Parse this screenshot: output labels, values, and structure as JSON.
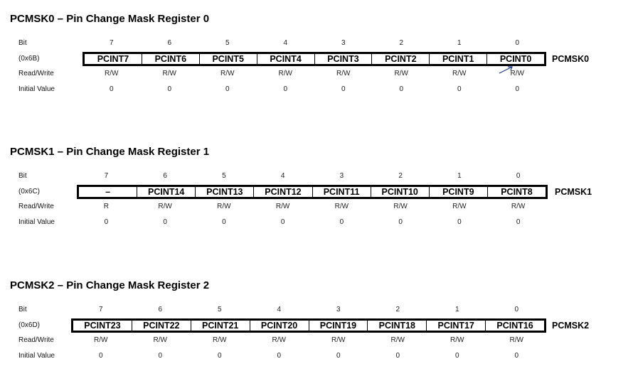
{
  "row_labels": {
    "bit": "Bit",
    "read_write": "Read/Write",
    "initial_value": "Initial Value"
  },
  "registers": [
    {
      "title": "PCMSK0 – Pin Change Mask Register 0",
      "address": "(0x6B)",
      "name": "PCMSK0",
      "bits": [
        "7",
        "6",
        "5",
        "4",
        "3",
        "2",
        "1",
        "0"
      ],
      "fields": [
        "PCINT7",
        "PCINT6",
        "PCINT5",
        "PCINT4",
        "PCINT3",
        "PCINT2",
        "PCINT1",
        "PCINT0"
      ],
      "access": [
        "R/W",
        "R/W",
        "R/W",
        "R/W",
        "R/W",
        "R/W",
        "R/W",
        "R/W"
      ],
      "initial": [
        "0",
        "0",
        "0",
        "0",
        "0",
        "0",
        "0",
        "0"
      ]
    },
    {
      "title": "PCMSK1 – Pin Change Mask Register 1",
      "address": "(0x6C)",
      "name": "PCMSK1",
      "bits": [
        "7",
        "6",
        "5",
        "4",
        "3",
        "2",
        "1",
        "0"
      ],
      "fields": [
        "–",
        "PCINT14",
        "PCINT13",
        "PCINT12",
        "PCINT11",
        "PCINT10",
        "PCINT9",
        "PCINT8"
      ],
      "access": [
        "R",
        "R/W",
        "R/W",
        "R/W",
        "R/W",
        "R/W",
        "R/W",
        "R/W"
      ],
      "initial": [
        "0",
        "0",
        "0",
        "0",
        "0",
        "0",
        "0",
        "0"
      ]
    },
    {
      "title": "PCMSK2 – Pin Change Mask Register 2",
      "address": "(0x6D)",
      "name": "PCMSK2",
      "bits": [
        "7",
        "6",
        "5",
        "4",
        "3",
        "2",
        "1",
        "0"
      ],
      "fields": [
        "PCINT23",
        "PCINT22",
        "PCINT21",
        "PCINT20",
        "PCINT19",
        "PCINT18",
        "PCINT17",
        "PCINT16"
      ],
      "access": [
        "R/W",
        "R/W",
        "R/W",
        "R/W",
        "R/W",
        "R/W",
        "R/W",
        "R/W"
      ],
      "initial": [
        "0",
        "0",
        "0",
        "0",
        "0",
        "0",
        "0",
        "0"
      ]
    }
  ]
}
